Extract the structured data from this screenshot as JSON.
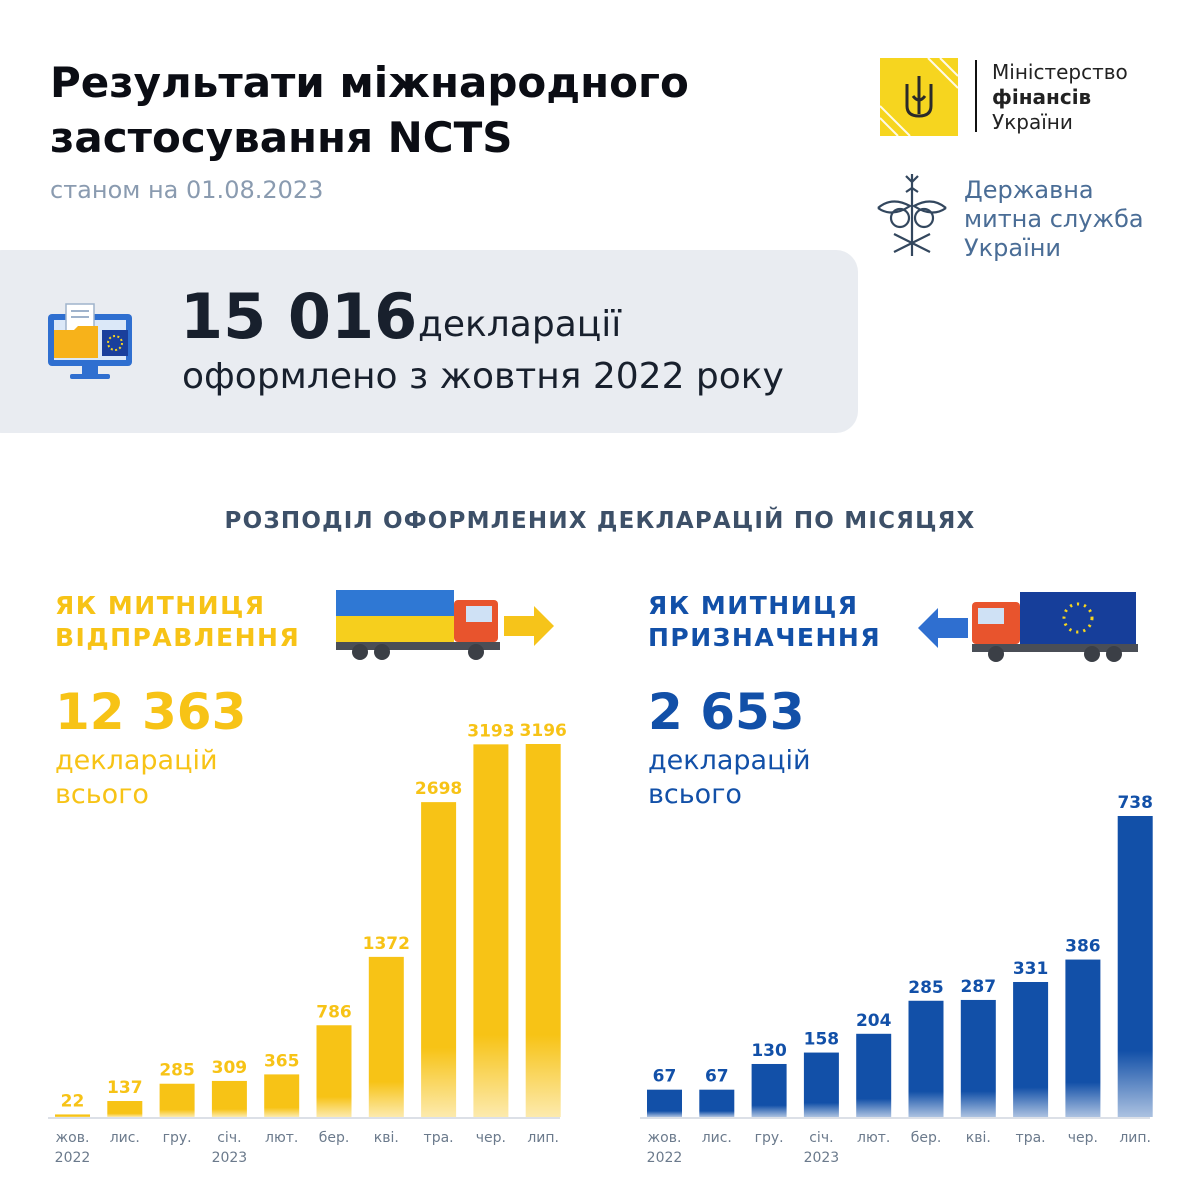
{
  "header": {
    "title": "Результати міжнародного застосування NCTS",
    "date": "станом на 01.08.2023"
  },
  "logos": {
    "mof_line1": "Міністерство",
    "mof_line2": "фінансів",
    "mof_line3": "України",
    "dms_line1": "Державна",
    "dms_line2": "митна служба",
    "dms_line3": "України"
  },
  "banner": {
    "total": "15 016",
    "unit": "декларації",
    "line2": "оформлено з жовтня 2022 року"
  },
  "section_title": "РОЗПОДІЛ ОФОРМЛЕНИХ ДЕКЛАРАЦІЙ ПО МІСЯЦЯХ",
  "departure": {
    "title_line1": "ЯК МИТНИЦЯ",
    "title_line2": "ВІДПРАВЛЕННЯ",
    "total": "12 363",
    "label_line1": "декларацій",
    "label_line2": "всього"
  },
  "destination": {
    "title_line1": "ЯК МИТНИЦЯ",
    "title_line2": "ПРИЗНАЧЕННЯ",
    "total": "2 653",
    "label_line1": "декларацій",
    "label_line2": "всього"
  },
  "colors": {
    "yellow": "#f7c316",
    "blue": "#1250a8",
    "axis": "#b8c2cf",
    "tick": "#6b7a8c"
  },
  "chart_data": [
    {
      "type": "bar",
      "categories": [
        "жов.",
        "лис.",
        "гру.",
        "січ.",
        "лют.",
        "бер.",
        "кві.",
        "тра.",
        "чер.",
        "лип."
      ],
      "year_labels": [
        "2022",
        "",
        "",
        "2023",
        "",
        "",
        "",
        "",
        "",
        ""
      ],
      "values": [
        22,
        137,
        285,
        309,
        365,
        786,
        1372,
        2698,
        3193,
        3196
      ],
      "ylim": [
        0,
        3196
      ],
      "color": "#f7c316"
    },
    {
      "type": "bar",
      "categories": [
        "жов.",
        "лис.",
        "гру.",
        "січ.",
        "лют.",
        "бер.",
        "кві.",
        "тра.",
        "чер.",
        "лип."
      ],
      "year_labels": [
        "2022",
        "",
        "",
        "2023",
        "",
        "",
        "",
        "",
        "",
        ""
      ],
      "values": [
        67,
        67,
        130,
        158,
        204,
        285,
        287,
        331,
        386,
        738
      ],
      "ylim": [
        0,
        738
      ],
      "color": "#1250a8"
    }
  ]
}
